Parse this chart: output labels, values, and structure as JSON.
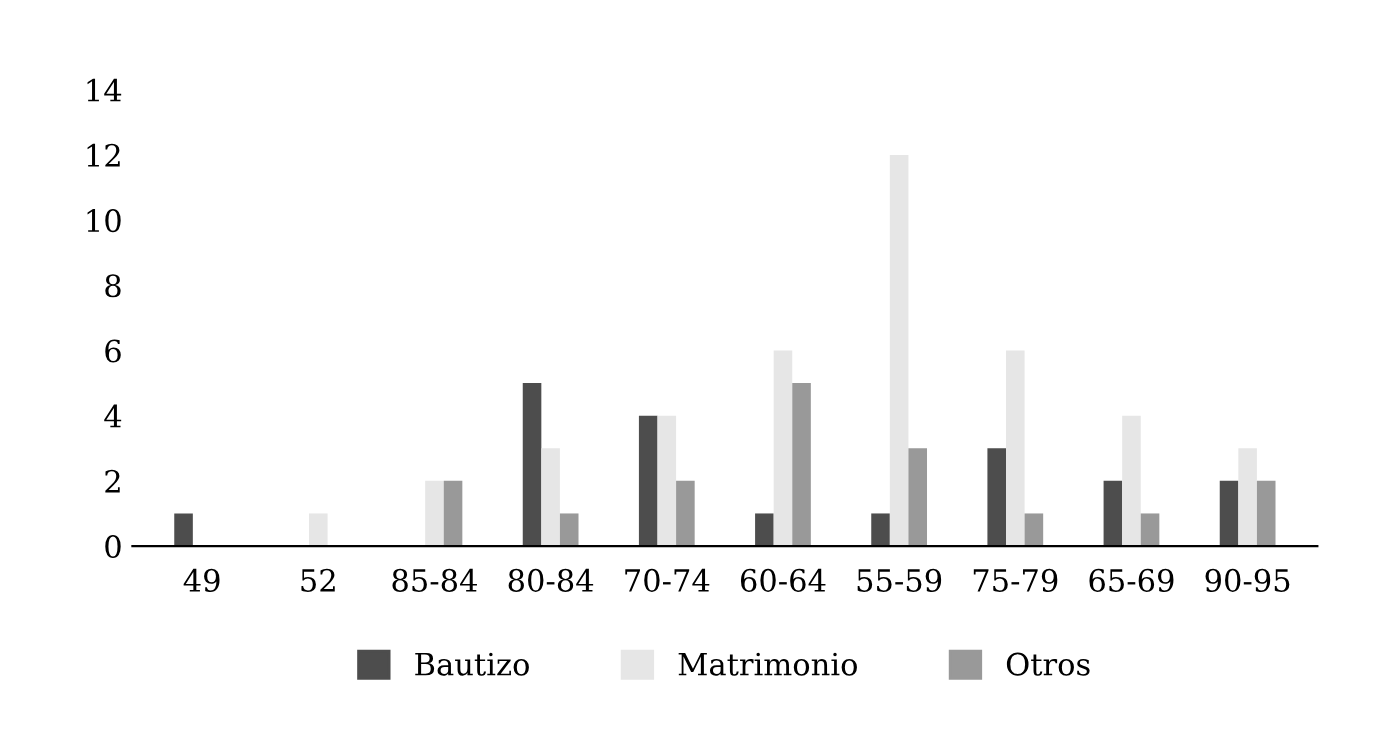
{
  "chart_data": {
    "type": "bar",
    "categories": [
      "49",
      "52",
      "85-84",
      "80-84",
      "70-74",
      "60-64",
      "55-59",
      "75-79",
      "65-69",
      "90-95"
    ],
    "series": [
      {
        "name": "Bautizo",
        "color": "#4d4d4d",
        "values": [
          1,
          0,
          0,
          5,
          4,
          1,
          1,
          3,
          2,
          2
        ]
      },
      {
        "name": "Matrimonio",
        "color": "#e6e6e6",
        "values": [
          0,
          1,
          2,
          3,
          4,
          6,
          12,
          6,
          4,
          3
        ]
      },
      {
        "name": "Otros",
        "color": "#999999",
        "values": [
          0,
          0,
          2,
          1,
          2,
          5,
          3,
          1,
          1,
          2
        ]
      }
    ],
    "ylim": [
      0,
      14
    ],
    "yticks": [
      0,
      2,
      4,
      6,
      8,
      10,
      12,
      14
    ],
    "grid": false,
    "legend": "bottom"
  }
}
